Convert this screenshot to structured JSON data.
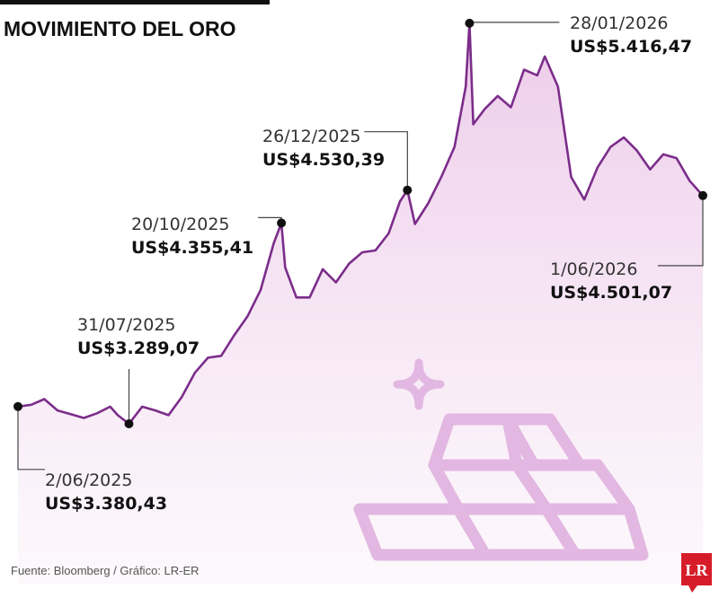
{
  "header": {
    "title": "MOVIMIENTO DEL ORO"
  },
  "footer": {
    "source": "Fuente: Bloomberg / Gráfico: LR-ER",
    "logo": "LR"
  },
  "colors": {
    "line": "#7b2d8a",
    "fill_top": "#ecc8e8",
    "fill_bottom": "#fbf4fa",
    "icon": "#e2b7e1",
    "logo": "#d61c2a"
  },
  "decor": {
    "icons": [
      "gold-bars-icon",
      "sparkle-icon"
    ]
  },
  "chart_data": {
    "type": "area",
    "title": "MOVIMIENTO DEL ORO",
    "x_range": [
      "2025-06-02",
      "2026-06-01"
    ],
    "y_unit": "US$",
    "grid": false,
    "legend": "none",
    "annotations": [
      {
        "date_label": "2/06/2025",
        "value_label": "US$3.380,43",
        "date": "2025-06-02",
        "value": 3380.43
      },
      {
        "date_label": "31/07/2025",
        "value_label": "US$3.289,07",
        "date": "2025-07-31",
        "value": 3289.07
      },
      {
        "date_label": "20/10/2025",
        "value_label": "US$4.355,41",
        "date": "2025-10-20",
        "value": 4355.41
      },
      {
        "date_label": "26/12/2025",
        "value_label": "US$4.530,39",
        "date": "2025-12-26",
        "value": 4530.39
      },
      {
        "date_label": "28/01/2026",
        "value_label": "US$5.416,47",
        "date": "2026-01-28",
        "value": 5416.47
      },
      {
        "date_label": "1/06/2026",
        "value_label": "US$4.501,07",
        "date": "2026-06-01",
        "value": 4501.07
      }
    ],
    "series": [
      {
        "values": [
          [
            "2025-06-02",
            3380
          ],
          [
            "2025-06-09",
            3390
          ],
          [
            "2025-06-16",
            3420
          ],
          [
            "2025-06-23",
            3360
          ],
          [
            "2025-06-30",
            3340
          ],
          [
            "2025-07-07",
            3320
          ],
          [
            "2025-07-14",
            3345
          ],
          [
            "2025-07-21",
            3380
          ],
          [
            "2025-07-25",
            3335
          ],
          [
            "2025-07-31",
            3289
          ],
          [
            "2025-08-07",
            3380
          ],
          [
            "2025-08-14",
            3360
          ],
          [
            "2025-08-21",
            3335
          ],
          [
            "2025-08-28",
            3430
          ],
          [
            "2025-09-04",
            3560
          ],
          [
            "2025-09-11",
            3640
          ],
          [
            "2025-09-18",
            3650
          ],
          [
            "2025-09-25",
            3760
          ],
          [
            "2025-10-02",
            3860
          ],
          [
            "2025-10-09",
            4000
          ],
          [
            "2025-10-16",
            4250
          ],
          [
            "2025-10-20",
            4355
          ],
          [
            "2025-10-22",
            4120
          ],
          [
            "2025-10-28",
            3960
          ],
          [
            "2025-11-04",
            3960
          ],
          [
            "2025-11-11",
            4110
          ],
          [
            "2025-11-18",
            4040
          ],
          [
            "2025-11-25",
            4140
          ],
          [
            "2025-12-02",
            4200
          ],
          [
            "2025-12-09",
            4210
          ],
          [
            "2025-12-16",
            4300
          ],
          [
            "2025-12-22",
            4470
          ],
          [
            "2025-12-26",
            4530
          ],
          [
            "2025-12-30",
            4350
          ],
          [
            "2026-01-06",
            4460
          ],
          [
            "2026-01-13",
            4600
          ],
          [
            "2026-01-20",
            4760
          ],
          [
            "2026-01-26",
            5080
          ],
          [
            "2026-01-28",
            5416
          ],
          [
            "2026-01-30",
            4880
          ],
          [
            "2026-02-05",
            4960
          ],
          [
            "2026-02-12",
            5030
          ],
          [
            "2026-02-19",
            4970
          ],
          [
            "2026-02-26",
            5170
          ],
          [
            "2026-03-05",
            5140
          ],
          [
            "2026-03-09",
            5240
          ],
          [
            "2026-03-16",
            5080
          ],
          [
            "2026-03-23",
            4600
          ],
          [
            "2026-03-30",
            4480
          ],
          [
            "2026-04-06",
            4650
          ],
          [
            "2026-04-13",
            4760
          ],
          [
            "2026-04-20",
            4810
          ],
          [
            "2026-04-27",
            4740
          ],
          [
            "2026-05-04",
            4640
          ],
          [
            "2026-05-11",
            4720
          ],
          [
            "2026-05-18",
            4700
          ],
          [
            "2026-05-25",
            4580
          ],
          [
            "2026-06-01",
            4501
          ]
        ]
      }
    ]
  }
}
